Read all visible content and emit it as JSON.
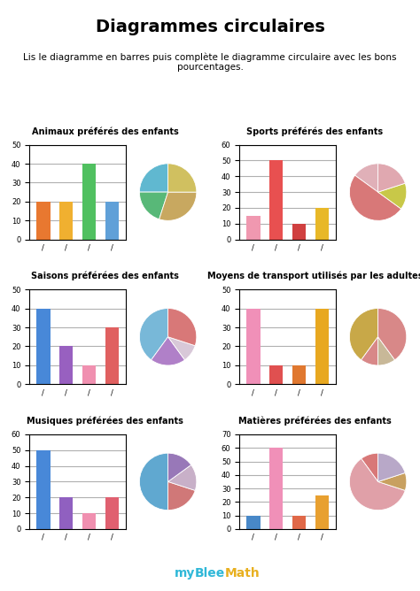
{
  "title": "Diagrammes circulaires",
  "subtitle": "Lis le diagramme en barres puis complète le diagramme circulaire avec les bons\npourcentages.",
  "annotations": [
    {
      "text": "my",
      "color": "#30b8d8"
    },
    {
      "text": "Blee",
      "color": "#30b8d8"
    },
    {
      "text": "Math",
      "color": "#e8b020"
    }
  ],
  "chart_data": [
    {
      "type": "bar",
      "title": "Animaux préférés des enfants",
      "categories": [
        "/",
        "/",
        "/",
        "/"
      ],
      "values": [
        20,
        20,
        40,
        20
      ],
      "colors": [
        "#e87830",
        "#f0b030",
        "#50c060",
        "#60a0d8"
      ],
      "ylim": [
        0,
        50
      ],
      "yticks": [
        0,
        10,
        20,
        30,
        40,
        50
      ],
      "grid": true
    },
    {
      "type": "pie",
      "values": [
        25,
        20,
        30,
        25
      ],
      "colors": [
        "#60b8d0",
        "#58b878",
        "#c8a860",
        "#d0c060"
      ]
    },
    {
      "type": "bar",
      "title": "Sports préférés des enfants",
      "categories": [
        "/",
        "/",
        "/",
        "/"
      ],
      "values": [
        15,
        50,
        10,
        20
      ],
      "colors": [
        "#f098b0",
        "#e85050",
        "#d04040",
        "#e8b828"
      ],
      "ylim": [
        0,
        60
      ],
      "yticks": [
        0,
        10,
        20,
        30,
        40,
        50,
        60
      ],
      "grid": true
    },
    {
      "type": "pie",
      "values": [
        15,
        50,
        15,
        20
      ],
      "colors": [
        "#e0b0b8",
        "#d87878",
        "#c8c848",
        "#e0a8b0"
      ]
    },
    {
      "type": "bar",
      "title": "Saisons préférées des enfants",
      "categories": [
        "/",
        "/",
        "/",
        "/"
      ],
      "values": [
        40,
        20,
        10,
        30
      ],
      "colors": [
        "#4888d8",
        "#9860c0",
        "#f090b0",
        "#e06060"
      ],
      "ylim": [
        0,
        50
      ],
      "yticks": [
        0,
        10,
        20,
        30,
        40,
        50
      ],
      "grid": true
    },
    {
      "type": "pie",
      "values": [
        40,
        20,
        10,
        30
      ],
      "colors": [
        "#78b8d8",
        "#b080c8",
        "#d8c8d8",
        "#d87878"
      ]
    },
    {
      "type": "bar",
      "title": "Moyens de transport utilisés par les adultes",
      "categories": [
        "/",
        "/",
        "/",
        "/"
      ],
      "values": [
        40,
        10,
        10,
        40
      ],
      "colors": [
        "#f090b8",
        "#e05050",
        "#e07830",
        "#e8a820"
      ],
      "ylim": [
        0,
        50
      ],
      "yticks": [
        0,
        10,
        20,
        30,
        40,
        50
      ],
      "grid": true
    },
    {
      "type": "pie",
      "values": [
        40,
        10,
        10,
        40
      ],
      "colors": [
        "#c8a848",
        "#d88888",
        "#c8b898",
        "#d88888"
      ]
    },
    {
      "type": "bar",
      "title": "Musiques préférées des enfants",
      "categories": [
        "/",
        "/",
        "/",
        "/"
      ],
      "values": [
        50,
        20,
        10,
        20
      ],
      "colors": [
        "#4888d8",
        "#9060c0",
        "#f090b0",
        "#e06070"
      ],
      "ylim": [
        0,
        60
      ],
      "yticks": [
        0,
        10,
        20,
        30,
        40,
        50,
        60
      ],
      "grid": true
    },
    {
      "type": "pie",
      "values": [
        50,
        20,
        15,
        15
      ],
      "colors": [
        "#60a8d0",
        "#d07878",
        "#c8b0c8",
        "#9878b8"
      ]
    },
    {
      "type": "bar",
      "title": "Matières préférées des enfants",
      "categories": [
        "/",
        "/",
        "/",
        "/"
      ],
      "values": [
        10,
        60,
        10,
        25
      ],
      "colors": [
        "#4888c8",
        "#f090b8",
        "#e06848",
        "#e8a030"
      ],
      "ylim": [
        0,
        70
      ],
      "yticks": [
        0,
        10,
        20,
        30,
        40,
        50,
        60,
        70
      ],
      "grid": true
    },
    {
      "type": "pie",
      "values": [
        10,
        60,
        10,
        20
      ],
      "colors": [
        "#d87878",
        "#e0a0a8",
        "#c8a060",
        "#b8a8c8"
      ]
    }
  ]
}
